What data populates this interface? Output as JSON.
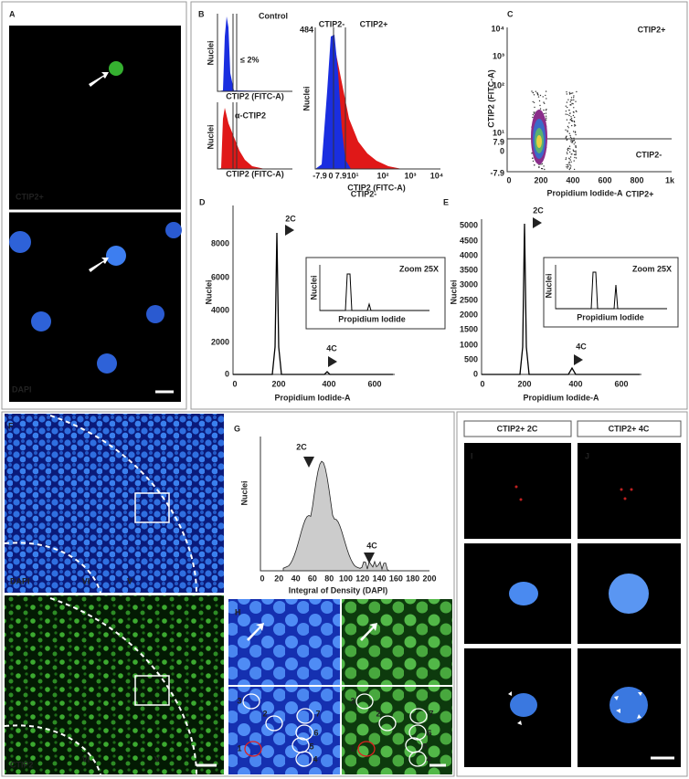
{
  "panel_a": {
    "label": "A",
    "top_channel": "CTIP2+",
    "bottom_channel": "DAPI"
  },
  "panel_b": {
    "label": "B",
    "control": {
      "title": "Control",
      "annotation": "≤ 2%",
      "y_label": "Nuclei",
      "x_label": "CTIP2 (FITC-A)"
    },
    "antibody": {
      "title": "α-CTIP2",
      "y_label": "Nuclei",
      "x_label": "CTIP2 (FITC-A)"
    },
    "overlay": {
      "y_max": "484",
      "gate_negative": "CTIP2-",
      "gate_positive": "CTIP2+",
      "x_ticks": [
        "-7.9",
        "0",
        "7.9",
        "10¹",
        "10²",
        "10³",
        "10⁴"
      ],
      "x_label": "CTIP2 (FITC-A)",
      "y_label": "Nuclei"
    }
  },
  "panel_c": {
    "label": "C",
    "upper_gate": "CTIP2+",
    "lower_gate": "CTIP2-",
    "y_ticks": [
      "10⁴",
      "10³",
      "10²",
      "10¹",
      "7.9",
      "0",
      "-7.9"
    ],
    "x_ticks": [
      "0",
      "200",
      "400",
      "600",
      "800",
      "1k"
    ],
    "x_label": "Propidium Iodide-A",
    "y_label": "CTIP2 (FITC-A)"
  },
  "panel_d": {
    "label": "D",
    "population": "CTIP2-",
    "peak_2c": "2C",
    "peak_4c": "4C",
    "y_ticks": [
      "0",
      "2000",
      "4000",
      "6000",
      "8000"
    ],
    "x_ticks": [
      "0",
      "200",
      "400",
      "600"
    ],
    "x_label": "Propidium Iodide-A",
    "y_label": "Nuclei",
    "inset": {
      "title": "Zoom 25X",
      "y_label": "Nuclei",
      "x_label": "Propidium Iodide"
    }
  },
  "panel_e": {
    "label": "E",
    "population": "CTIP2+",
    "peak_2c": "2C",
    "peak_4c": "4C",
    "y_ticks": [
      "0",
      "500",
      "1000",
      "1500",
      "2000",
      "2500",
      "3000",
      "3500",
      "4000",
      "4500",
      "5000"
    ],
    "x_ticks": [
      "0",
      "200",
      "400",
      "600"
    ],
    "x_label": "Propidium Iodide-A",
    "y_label": "Nuclei",
    "inset": {
      "title": "Zoom 25X",
      "y_label": "Nuclei",
      "x_label": "Propidium Iodide"
    }
  },
  "panel_f": {
    "label": "F",
    "top_stain": "DAPI",
    "bottom_stain": "CTIP2",
    "layer_deep": "VI",
    "layer_upper": "V"
  },
  "panel_g": {
    "label": "G",
    "peak_2c": "2C",
    "peak_4c": "4C",
    "x_ticks": [
      "0",
      "20",
      "40",
      "60",
      "80",
      "100",
      "120",
      "140",
      "160",
      "180",
      "200"
    ],
    "x_label": "Integral of Density (DAPI)",
    "y_label": "Nuclei"
  },
  "panel_h": {
    "label": "H",
    "cell_numbers": [
      "1",
      "2",
      "3",
      "4",
      "5",
      "6",
      "7"
    ]
  },
  "panel_ij": {
    "header_i": "CTIP2+ 2C",
    "header_j": "CTIP2+ 4C",
    "label_i": "I",
    "label_j": "J"
  }
}
